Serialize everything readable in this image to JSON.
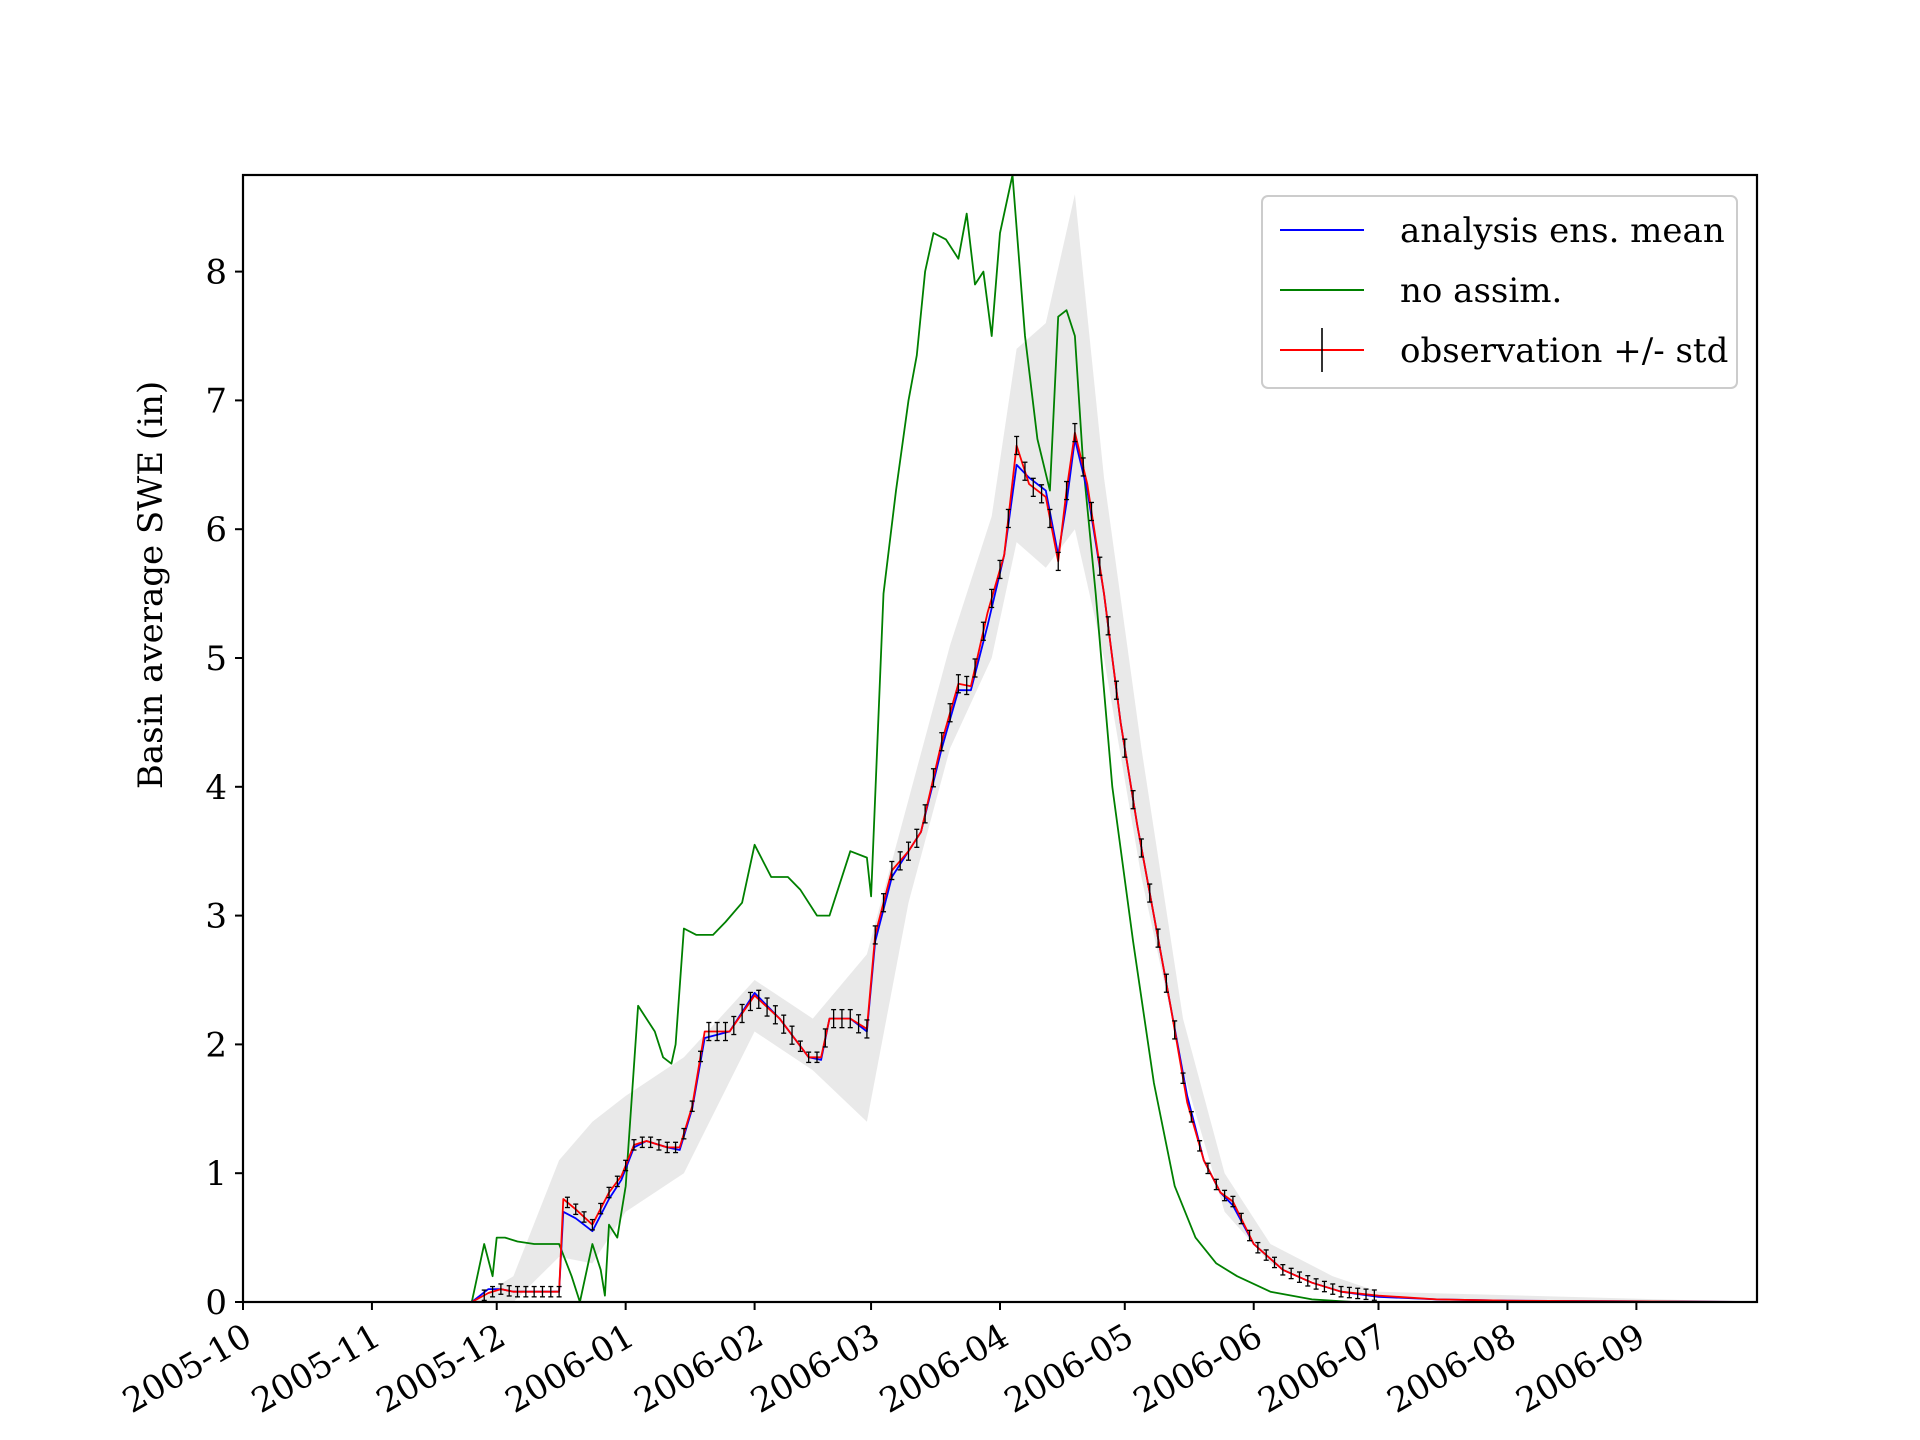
{
  "chart_data": {
    "type": "line",
    "title": "",
    "xlabel": "",
    "ylabel": "Basin average SWE (in)",
    "xlim": [
      "2005-10-01",
      "2006-09-30"
    ],
    "ylim": [
      0,
      8.75
    ],
    "grid": false,
    "legend_placement": "top-right",
    "x_ticks": [
      "2005-10",
      "2005-11",
      "2005-12",
      "2006-01",
      "2006-02",
      "2006-03",
      "2006-04",
      "2006-05",
      "2006-06",
      "2006-07",
      "2006-08",
      "2006-09"
    ],
    "y_ticks": [
      "0",
      "1",
      "2",
      "3",
      "4",
      "5",
      "6",
      "7",
      "8"
    ],
    "colors": {
      "analysis": "#0000ff",
      "no_assim": "#008000",
      "observation": "#ff0000",
      "errorbar": "#000000",
      "ensemble": "#b0b0b0"
    },
    "legend": [
      {
        "key": "analysis",
        "label": "analysis ens. mean"
      },
      {
        "key": "no_assim",
        "label": "no assim."
      },
      {
        "key": "observation",
        "label": "observation +/- std"
      }
    ],
    "observation_std": 0.05,
    "series": [
      {
        "name": "analysis ens. mean",
        "key": "analysis",
        "x": [
          "2005-10-01",
          "2005-11-01",
          "2005-11-25",
          "2005-11-29",
          "2005-12-02",
          "2005-12-05",
          "2005-12-16",
          "2005-12-17",
          "2005-12-20",
          "2005-12-24",
          "2005-12-28",
          "2005-12-31",
          "2006-01-03",
          "2006-01-06",
          "2006-01-11",
          "2006-01-14",
          "2006-01-17",
          "2006-01-20",
          "2006-01-26",
          "2006-02-01",
          "2006-02-07",
          "2006-02-14",
          "2006-02-17",
          "2006-02-19",
          "2006-02-24",
          "2006-02-28",
          "2006-03-02",
          "2006-03-06",
          "2006-03-10",
          "2006-03-13",
          "2006-03-18",
          "2006-03-22",
          "2006-03-25",
          "2006-03-29",
          "2006-04-02",
          "2006-04-05",
          "2006-04-08",
          "2006-04-12",
          "2006-04-15",
          "2006-04-17",
          "2006-04-19",
          "2006-04-22",
          "2006-04-26",
          "2006-04-30",
          "2006-05-04",
          "2006-05-08",
          "2006-05-12",
          "2006-05-16",
          "2006-05-20",
          "2006-05-24",
          "2006-05-27",
          "2006-06-01",
          "2006-06-08",
          "2006-06-15",
          "2006-06-22",
          "2006-07-01",
          "2006-07-15",
          "2006-08-01",
          "2006-09-30"
        ],
        "values": [
          0.0,
          0.0,
          0.0,
          0.1,
          0.1,
          0.08,
          0.08,
          0.7,
          0.65,
          0.55,
          0.8,
          0.95,
          1.2,
          1.25,
          1.2,
          1.18,
          1.5,
          2.05,
          2.1,
          2.4,
          2.2,
          1.9,
          1.88,
          2.2,
          2.2,
          2.1,
          2.8,
          3.3,
          3.5,
          3.65,
          4.3,
          4.75,
          4.75,
          5.25,
          5.8,
          6.5,
          6.4,
          6.3,
          5.8,
          6.2,
          6.7,
          6.3,
          5.5,
          4.5,
          3.7,
          3.0,
          2.3,
          1.6,
          1.1,
          0.85,
          0.75,
          0.45,
          0.25,
          0.15,
          0.08,
          0.04,
          0.02,
          0.01,
          0.0
        ]
      },
      {
        "name": "no assim.",
        "key": "no_assim",
        "x": [
          "2005-10-01",
          "2005-11-01",
          "2005-11-25",
          "2005-11-28",
          "2005-11-30",
          "2005-12-01",
          "2005-12-03",
          "2005-12-06",
          "2005-12-10",
          "2005-12-16",
          "2005-12-19",
          "2005-12-21",
          "2005-12-24",
          "2005-12-26",
          "2005-12-27",
          "2005-12-28",
          "2005-12-30",
          "2006-01-01",
          "2006-01-04",
          "2006-01-08",
          "2006-01-10",
          "2006-01-12",
          "2006-01-13",
          "2006-01-15",
          "2006-01-18",
          "2006-01-22",
          "2006-01-25",
          "2006-01-29",
          "2006-02-01",
          "2006-02-05",
          "2006-02-09",
          "2006-02-12",
          "2006-02-16",
          "2006-02-19",
          "2006-02-24",
          "2006-02-28",
          "2006-03-01",
          "2006-03-04",
          "2006-03-07",
          "2006-03-10",
          "2006-03-12",
          "2006-03-14",
          "2006-03-16",
          "2006-03-19",
          "2006-03-22",
          "2006-03-24",
          "2006-03-26",
          "2006-03-28",
          "2006-03-30",
          "2006-04-01",
          "2006-04-04",
          "2006-04-07",
          "2006-04-10",
          "2006-04-13",
          "2006-04-15",
          "2006-04-17",
          "2006-04-19",
          "2006-04-21",
          "2006-04-24",
          "2006-04-28",
          "2006-05-03",
          "2006-05-08",
          "2006-05-13",
          "2006-05-18",
          "2006-05-23",
          "2006-05-28",
          "2006-06-05",
          "2006-06-15",
          "2006-06-25",
          "2006-07-01",
          "2006-09-30"
        ],
        "values": [
          0.0,
          0.0,
          0.0,
          0.45,
          0.2,
          0.5,
          0.5,
          0.47,
          0.45,
          0.45,
          0.2,
          0.0,
          0.45,
          0.25,
          0.05,
          0.6,
          0.5,
          0.9,
          2.3,
          2.1,
          1.9,
          1.85,
          2.0,
          2.9,
          2.85,
          2.85,
          2.95,
          3.1,
          3.55,
          3.3,
          3.3,
          3.2,
          3.0,
          3.0,
          3.5,
          3.45,
          3.15,
          5.5,
          6.3,
          7.0,
          7.35,
          8.0,
          8.3,
          8.25,
          8.1,
          8.45,
          7.9,
          8.0,
          7.5,
          8.3,
          8.75,
          7.5,
          6.7,
          6.3,
          7.65,
          7.7,
          7.5,
          6.5,
          5.5,
          4.0,
          2.8,
          1.7,
          0.9,
          0.5,
          0.3,
          0.2,
          0.08,
          0.02,
          0.0,
          0.0,
          0.0
        ]
      },
      {
        "name": "observation +/- std",
        "key": "observation",
        "x": [
          "2005-10-01",
          "2005-11-01",
          "2005-11-25",
          "2005-11-29",
          "2005-12-02",
          "2005-12-05",
          "2005-12-16",
          "2005-12-17",
          "2005-12-20",
          "2005-12-24",
          "2005-12-28",
          "2005-12-31",
          "2006-01-03",
          "2006-01-06",
          "2006-01-11",
          "2006-01-14",
          "2006-01-17",
          "2006-01-20",
          "2006-01-26",
          "2006-02-01",
          "2006-02-07",
          "2006-02-14",
          "2006-02-17",
          "2006-02-19",
          "2006-02-24",
          "2006-02-28",
          "2006-03-02",
          "2006-03-06",
          "2006-03-10",
          "2006-03-13",
          "2006-03-18",
          "2006-03-22",
          "2006-03-25",
          "2006-03-29",
          "2006-04-02",
          "2006-04-05",
          "2006-04-08",
          "2006-04-12",
          "2006-04-15",
          "2006-04-17",
          "2006-04-19",
          "2006-04-22",
          "2006-04-26",
          "2006-04-30",
          "2006-05-04",
          "2006-05-08",
          "2006-05-12",
          "2006-05-16",
          "2006-05-20",
          "2006-05-24",
          "2006-05-27",
          "2006-06-01",
          "2006-06-08",
          "2006-06-15",
          "2006-06-22",
          "2006-07-01",
          "2006-07-15",
          "2006-08-01",
          "2006-09-30"
        ],
        "values": [
          0.0,
          0.0,
          0.0,
          0.07,
          0.1,
          0.08,
          0.08,
          0.8,
          0.72,
          0.6,
          0.85,
          0.98,
          1.22,
          1.25,
          1.2,
          1.2,
          1.52,
          2.1,
          2.1,
          2.38,
          2.2,
          1.9,
          1.9,
          2.2,
          2.2,
          2.12,
          2.85,
          3.35,
          3.5,
          3.65,
          4.35,
          4.8,
          4.78,
          5.35,
          5.8,
          6.65,
          6.35,
          6.25,
          5.75,
          6.3,
          6.75,
          6.35,
          5.5,
          4.5,
          3.7,
          3.0,
          2.3,
          1.55,
          1.1,
          0.85,
          0.78,
          0.45,
          0.25,
          0.15,
          0.08,
          0.05,
          0.02,
          0.01,
          0.0
        ]
      }
    ],
    "ensemble_band": {
      "x": [
        "2005-10-01",
        "2005-11-01",
        "2005-11-25",
        "2005-12-05",
        "2005-12-16",
        "2005-12-24",
        "2006-01-01",
        "2006-01-15",
        "2006-02-01",
        "2006-02-15",
        "2006-02-28",
        "2006-03-10",
        "2006-03-20",
        "2006-03-30",
        "2006-04-05",
        "2006-04-12",
        "2006-04-19",
        "2006-04-26",
        "2006-05-05",
        "2006-05-15",
        "2006-05-25",
        "2006-06-05",
        "2006-06-20",
        "2006-07-01",
        "2006-09-30"
      ],
      "low": [
        0.0,
        0.0,
        0.0,
        0.0,
        0.35,
        0.3,
        0.7,
        1.0,
        2.1,
        1.8,
        1.4,
        3.1,
        4.3,
        5.0,
        5.9,
        5.7,
        6.0,
        5.0,
        3.3,
        1.8,
        0.7,
        0.3,
        0.1,
        0.03,
        0.0
      ],
      "high": [
        0.0,
        0.0,
        0.0,
        0.2,
        1.1,
        1.4,
        1.6,
        1.9,
        2.5,
        2.2,
        2.7,
        3.9,
        5.1,
        6.1,
        7.4,
        7.6,
        8.6,
        6.4,
        4.3,
        2.2,
        1.0,
        0.45,
        0.2,
        0.08,
        0.0
      ]
    }
  }
}
